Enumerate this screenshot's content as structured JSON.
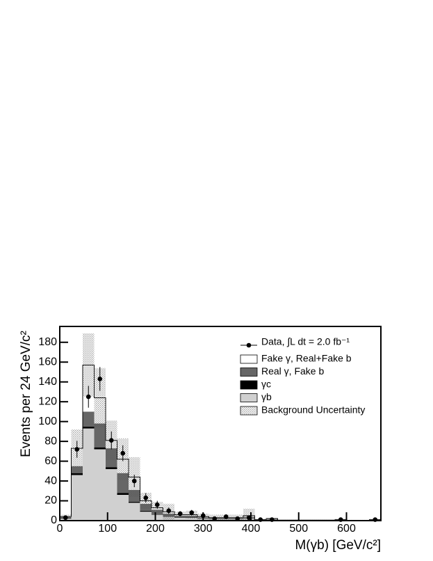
{
  "chart_data": {
    "type": "histogram",
    "x_label": "M(γb) [GeV/c²]",
    "y_label": "Events per 24 GeV/c²",
    "bins": [
      0,
      24,
      48,
      72,
      96,
      120,
      144,
      168,
      192,
      216,
      240,
      264,
      288,
      312,
      336,
      360,
      384,
      408,
      432,
      456,
      480,
      504,
      528,
      552,
      576,
      600,
      624,
      648,
      672
    ],
    "xlim": [
      0,
      672
    ],
    "ylim": [
      0,
      196
    ],
    "xticks": [
      0,
      100,
      200,
      300,
      400,
      500,
      600
    ],
    "yticks": [
      0,
      20,
      40,
      60,
      80,
      100,
      120,
      140,
      160,
      180
    ],
    "series": [
      {
        "name": "γb",
        "color": "#d0d0d0",
        "values": [
          2,
          46,
          93,
          72,
          52,
          26,
          18,
          9,
          6,
          4,
          3,
          3,
          2,
          1.5,
          1.5,
          1.5,
          2,
          0.5,
          1,
          0.3,
          0.3,
          0.3,
          0.3,
          0.3,
          0.5,
          0.2,
          0.2,
          0.5
        ]
      },
      {
        "name": "γc",
        "color": "#000000",
        "values": [
          0.5,
          2,
          2,
          2,
          2,
          2,
          1,
          1,
          0.5,
          0.5,
          0.5,
          0.5,
          0.3,
          0.2,
          0.2,
          0.2,
          0.3,
          0.1,
          0.1,
          0,
          0,
          0,
          0,
          0,
          0.1,
          0,
          0,
          0.1
        ]
      },
      {
        "name": "Real γ, Fake b",
        "color": "#666666",
        "values": [
          1,
          7,
          15,
          24,
          19,
          20,
          12,
          7,
          4.5,
          2.5,
          1.5,
          1.5,
          1,
          0.8,
          0.8,
          0.8,
          1.5,
          0.3,
          0.5,
          0.2,
          0.2,
          0.2,
          0.2,
          0.2,
          0.2,
          0.1,
          0.1,
          0.2
        ]
      },
      {
        "name": "Fake γ, Real+Fake b",
        "color": "#ffffff",
        "values": [
          0.5,
          18,
          47,
          26,
          8,
          14,
          13,
          3,
          2,
          2,
          1,
          1,
          0.7,
          0.5,
          0.5,
          0.5,
          1.2,
          0.1,
          0.4,
          0,
          0,
          0,
          0,
          0,
          0.2,
          0,
          0,
          0.2
        ]
      }
    ],
    "uncertainty": {
      "name": "Background Uncertainty",
      "values": [
        2,
        19,
        32,
        30,
        20,
        21,
        20,
        8,
        6,
        8,
        3,
        4,
        3,
        3,
        3,
        3,
        7,
        1,
        1,
        0.5,
        0.5,
        0.5,
        0.5,
        0.5,
        1,
        0.5,
        0.5,
        1
      ]
    },
    "data": {
      "name": "Data, ∫L dt = 2.0 fb⁻¹",
      "color": "#000000",
      "values": [
        3,
        72,
        125,
        143,
        81,
        68,
        40,
        23,
        16,
        10,
        7,
        8,
        5,
        2,
        4,
        2,
        3,
        1,
        1,
        null,
        null,
        null,
        null,
        null,
        1,
        null,
        null,
        1
      ],
      "errors": [
        1.7,
        8.5,
        11,
        12,
        9,
        8,
        6.3,
        4.8,
        4,
        3.2,
        2.6,
        2.8,
        2.2,
        1.4,
        2,
        1.4,
        1.7,
        1,
        1,
        null,
        null,
        null,
        null,
        null,
        1,
        null,
        null,
        1
      ]
    }
  }
}
